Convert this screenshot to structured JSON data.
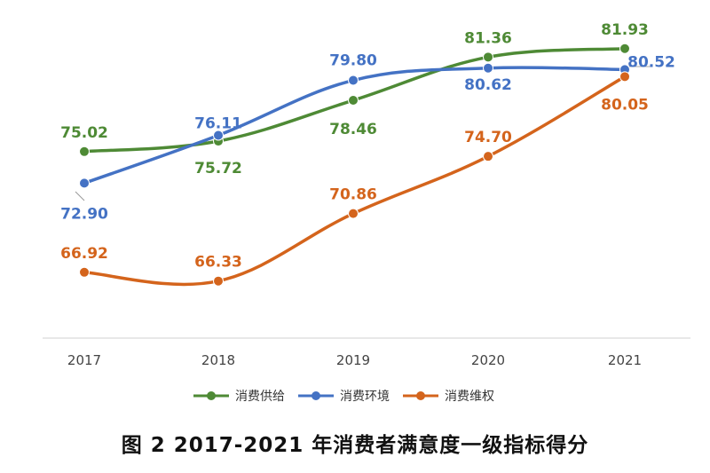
{
  "caption": "图 2  2017-2021 年消费者满意度一级指标得分",
  "chart_data": {
    "type": "line",
    "categories": [
      "2017",
      "2018",
      "2019",
      "2020",
      "2021"
    ],
    "series": [
      {
        "name": "消费供给",
        "color": "#4e8a35",
        "values": [
          75.02,
          75.72,
          78.46,
          81.36,
          81.93
        ]
      },
      {
        "name": "消费环境",
        "color": "#4472c4",
        "values": [
          72.9,
          76.11,
          79.8,
          80.62,
          80.52
        ]
      },
      {
        "name": "消费维权",
        "color": "#d4641c",
        "values": [
          66.92,
          66.33,
          70.86,
          74.7,
          80.05
        ]
      }
    ],
    "ylim": [
      62.5,
      84
    ],
    "grid": false,
    "legend": "bottom"
  }
}
